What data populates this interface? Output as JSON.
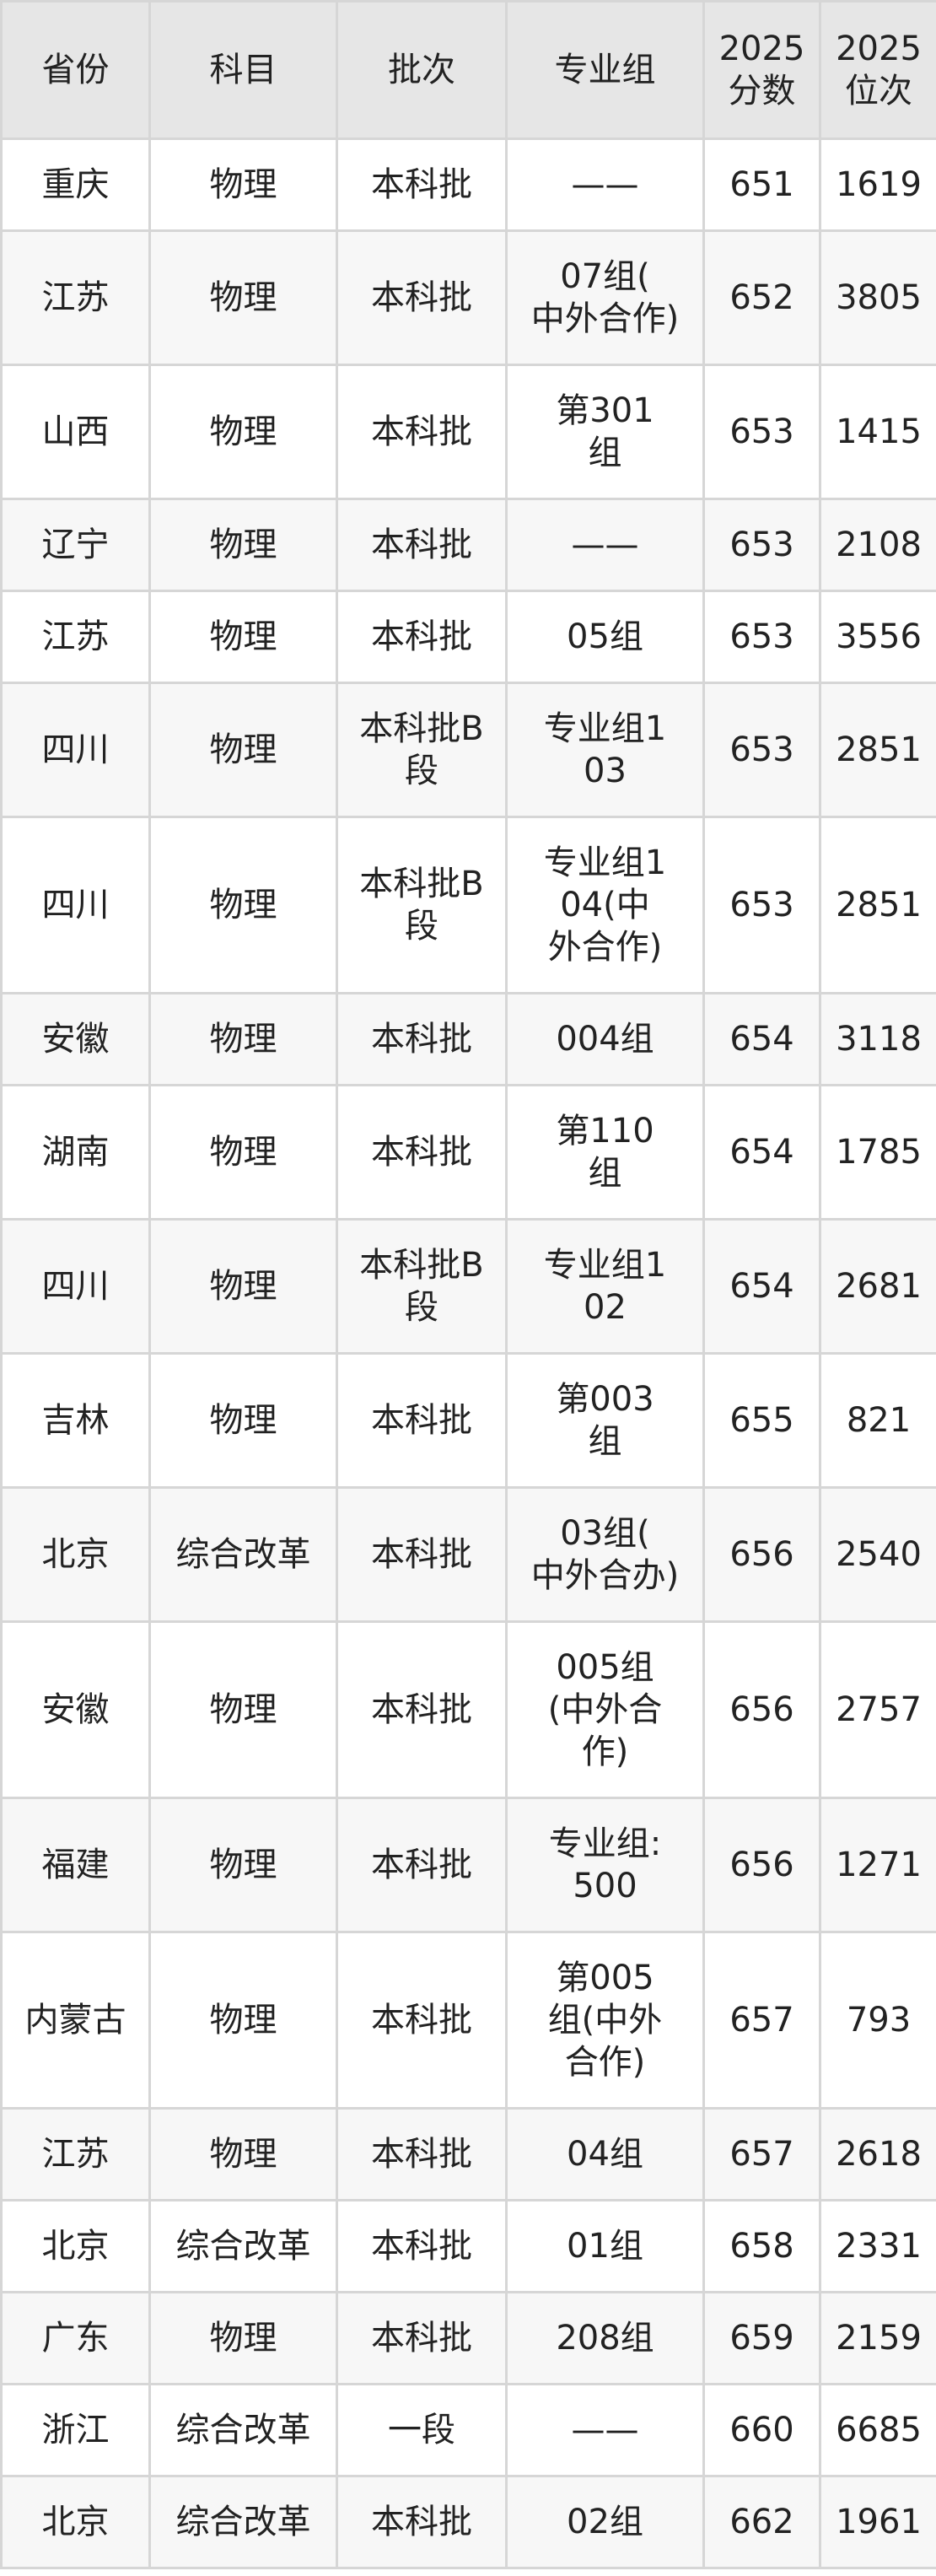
{
  "table": {
    "headers": [
      "省份",
      "科目",
      "批次",
      "专业组",
      "2025\n分数",
      "2025\n位次"
    ],
    "rows": [
      [
        "重庆",
        "物理",
        "本科批",
        "——",
        "651",
        "1619"
      ],
      [
        "江苏",
        "物理",
        "本科批",
        "07组(\n中外合作)",
        "652",
        "3805"
      ],
      [
        "山西",
        "物理",
        "本科批",
        "第301\n组",
        "653",
        "1415"
      ],
      [
        "辽宁",
        "物理",
        "本科批",
        "——",
        "653",
        "2108"
      ],
      [
        "江苏",
        "物理",
        "本科批",
        "05组",
        "653",
        "3556"
      ],
      [
        "四川",
        "物理",
        "本科批B\n段",
        "专业组1\n03",
        "653",
        "2851"
      ],
      [
        "四川",
        "物理",
        "本科批B\n段",
        "专业组1\n04(中\n外合作)",
        "653",
        "2851"
      ],
      [
        "安徽",
        "物理",
        "本科批",
        "004组",
        "654",
        "3118"
      ],
      [
        "湖南",
        "物理",
        "本科批",
        "第110\n组",
        "654",
        "1785"
      ],
      [
        "四川",
        "物理",
        "本科批B\n段",
        "专业组1\n02",
        "654",
        "2681"
      ],
      [
        "吉林",
        "物理",
        "本科批",
        "第003\n组",
        "655",
        "821"
      ],
      [
        "北京",
        "综合改革",
        "本科批",
        "03组(\n中外合办)",
        "656",
        "2540"
      ],
      [
        "安徽",
        "物理",
        "本科批",
        "005组\n(中外合\n作)",
        "656",
        "2757"
      ],
      [
        "福建",
        "物理",
        "本科批",
        "专业组:\n500",
        "656",
        "1271"
      ],
      [
        "内蒙古",
        "物理",
        "本科批",
        "第005\n组(中外\n合作)",
        "657",
        "793"
      ],
      [
        "江苏",
        "物理",
        "本科批",
        "04组",
        "657",
        "2618"
      ],
      [
        "北京",
        "综合改革",
        "本科批",
        "01组",
        "658",
        "2331"
      ],
      [
        "广东",
        "物理",
        "本科批",
        "208组",
        "659",
        "2159"
      ],
      [
        "浙江",
        "综合改革",
        "一段",
        "——",
        "660",
        "6685"
      ],
      [
        "北京",
        "综合改革",
        "本科批",
        "02组",
        "662",
        "1961"
      ]
    ]
  }
}
